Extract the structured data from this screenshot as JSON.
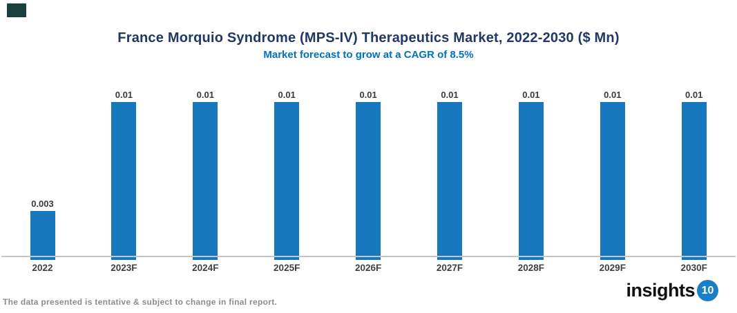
{
  "chart_data": {
    "type": "bar",
    "title": "France Morquio Syndrome (MPS-IV) Therapeutics Market, 2022-2030 ($ Mn)",
    "subtitle": "Market forecast to grow at a CAGR of 8.5%",
    "categories": [
      "2022",
      "2023F",
      "2024F",
      "2025F",
      "2026F",
      "2027F",
      "2028F",
      "2029F",
      "2030F"
    ],
    "values": [
      0.003,
      0.01,
      0.01,
      0.01,
      0.01,
      0.01,
      0.01,
      0.01,
      0.01
    ],
    "value_labels": [
      "0.003",
      "0.01",
      "0.01",
      "0.01",
      "0.01",
      "0.01",
      "0.01",
      "0.01",
      "0.01"
    ],
    "xlabel": "",
    "ylabel": "",
    "ylim": [
      0,
      0.012
    ],
    "grid": false,
    "legend": false,
    "bar_color": "#1878be"
  },
  "colors": {
    "title": "#1f3864",
    "subtitle": "#0070c0",
    "bar": "#1878be",
    "axis_line": "#c6c6c6",
    "data_label": "#3a3a3a",
    "tick_label": "#3f3f3f",
    "footer_note": "#8c8c8c",
    "logo_text": "#111111",
    "logo_badge_bg": "#1b7fc6",
    "corner_mark": "#1b3e3e"
  },
  "footer": {
    "note": "The data presented is tentative & subject to change in final report.",
    "logo_text": "insights",
    "logo_badge": "10"
  }
}
